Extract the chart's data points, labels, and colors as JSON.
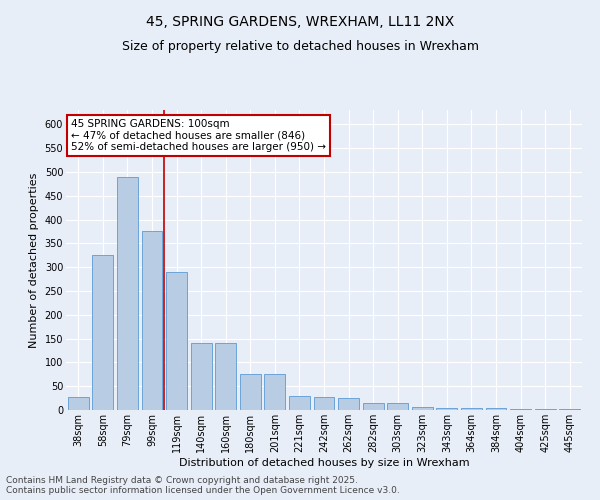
{
  "title1": "45, SPRING GARDENS, WREXHAM, LL11 2NX",
  "title2": "Size of property relative to detached houses in Wrexham",
  "xlabel": "Distribution of detached houses by size in Wrexham",
  "ylabel": "Number of detached properties",
  "categories": [
    "38sqm",
    "58sqm",
    "79sqm",
    "99sqm",
    "119sqm",
    "140sqm",
    "160sqm",
    "180sqm",
    "201sqm",
    "221sqm",
    "242sqm",
    "262sqm",
    "282sqm",
    "303sqm",
    "323sqm",
    "343sqm",
    "364sqm",
    "384sqm",
    "404sqm",
    "425sqm",
    "445sqm"
  ],
  "values": [
    28,
    325,
    490,
    375,
    290,
    140,
    140,
    75,
    75,
    30,
    27,
    25,
    15,
    15,
    7,
    5,
    5,
    4,
    2,
    2,
    2
  ],
  "bar_color": "#b8cce4",
  "bar_edge_color": "#5b9bd5",
  "vline_x": 3.5,
  "vline_color": "#c00000",
  "annotation_line1": "45 SPRING GARDENS: 100sqm",
  "annotation_line2": "← 47% of detached houses are smaller (846)",
  "annotation_line3": "52% of semi-detached houses are larger (950) →",
  "annotation_box_color": "#ffffff",
  "annotation_box_edge": "#c00000",
  "ylim": [
    0,
    630
  ],
  "yticks": [
    0,
    50,
    100,
    150,
    200,
    250,
    300,
    350,
    400,
    450,
    500,
    550,
    600
  ],
  "background_color": "#e8eef8",
  "grid_color": "#ffffff",
  "footer": "Contains HM Land Registry data © Crown copyright and database right 2025.\nContains public sector information licensed under the Open Government Licence v3.0.",
  "title_fontsize": 10,
  "subtitle_fontsize": 9,
  "axis_label_fontsize": 8,
  "tick_fontsize": 7,
  "annotation_fontsize": 7.5,
  "footer_fontsize": 6.5
}
